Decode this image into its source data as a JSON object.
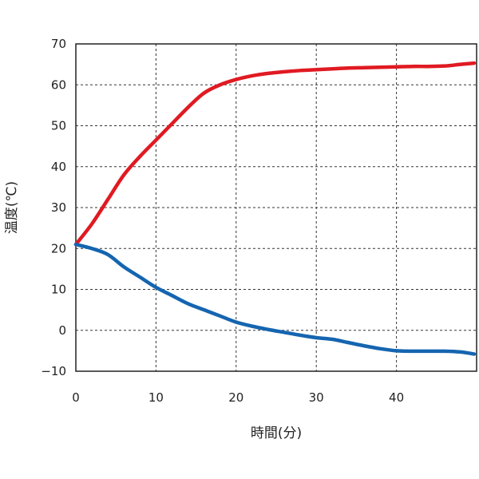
{
  "chart_data": {
    "type": "line",
    "title": "",
    "xlabel": "時間(分)",
    "ylabel": "温度(℃)",
    "xlim": [
      0,
      50
    ],
    "ylim": [
      -10,
      70
    ],
    "xticks": [
      0,
      10,
      20,
      30,
      40
    ],
    "yticks": [
      -10,
      0,
      10,
      20,
      30,
      40,
      50,
      60,
      70
    ],
    "grid": true,
    "grid_style": "dashed",
    "legend": "none",
    "series": [
      {
        "color": "#e01a22",
        "x": [
          0,
          2,
          4,
          6,
          8,
          10,
          12,
          14,
          16,
          18,
          20,
          22,
          24,
          26,
          28,
          30,
          32,
          34,
          36,
          38,
          40,
          42,
          44,
          46,
          48,
          49.7
        ],
        "y": [
          21,
          26,
          32,
          38,
          42.5,
          46.5,
          50.5,
          54.5,
          58,
          60,
          61.3,
          62.2,
          62.8,
          63.2,
          63.5,
          63.7,
          63.9,
          64.1,
          64.2,
          64.3,
          64.4,
          64.5,
          64.5,
          64.6,
          65,
          65.3
        ]
      },
      {
        "color": "#1565b0",
        "x": [
          0,
          2,
          4,
          6,
          8,
          10,
          12,
          14,
          16,
          18,
          20,
          22,
          24,
          26,
          28,
          30,
          32,
          34,
          36,
          38,
          40,
          42,
          44,
          46,
          48,
          49.7
        ],
        "y": [
          21,
          20,
          18.5,
          15.5,
          13,
          10.5,
          8.5,
          6.5,
          5,
          3.5,
          2,
          1,
          0.2,
          -0.5,
          -1.2,
          -1.8,
          -2.2,
          -3,
          -3.8,
          -4.5,
          -5,
          -5.1,
          -5.1,
          -5.1,
          -5.3,
          -5.8
        ]
      }
    ]
  }
}
